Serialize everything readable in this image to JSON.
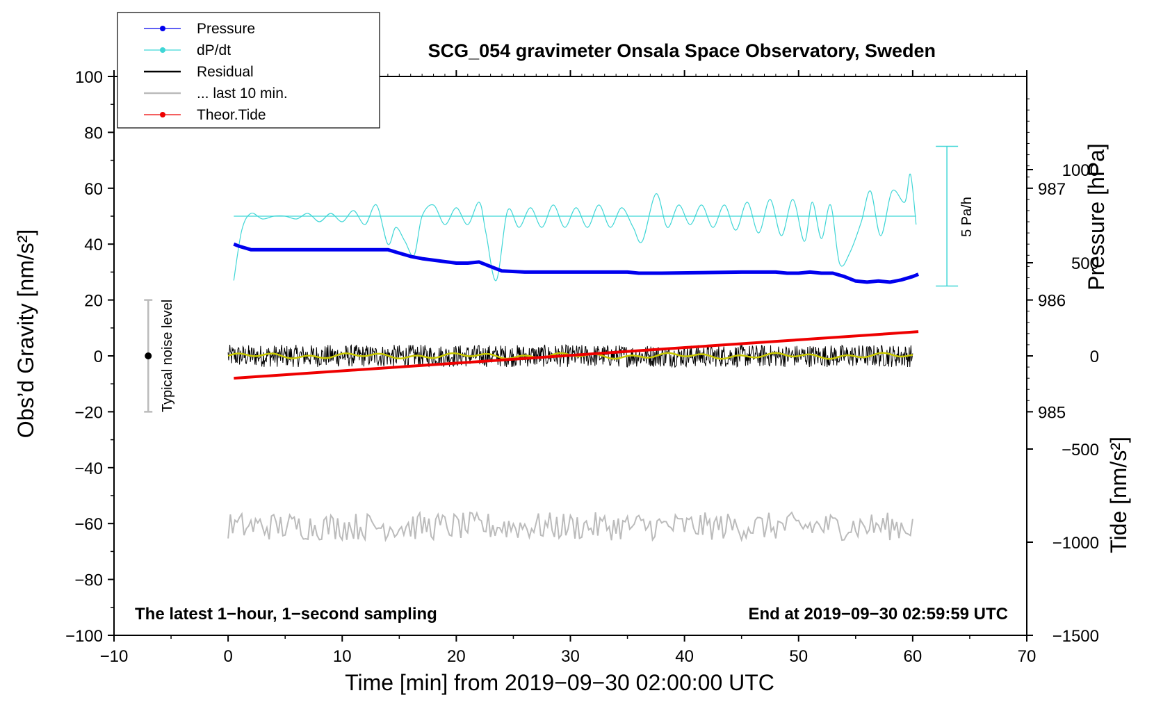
{
  "chart_data": {
    "type": "line",
    "title": "SCG_054 gravimeter Onsala Space Observatory, Sweden",
    "xlabel": "Time [min] from 2019−09−30 02:00:00 UTC",
    "ylabel_left": "Obs’d Gravity [nm/s²]",
    "ylabel_right_top": "Pressure [hPa]",
    "ylabel_right_bottom": "Tide [nm/s²]",
    "xlim": [
      -10,
      70
    ],
    "ylim": [
      -100,
      100
    ],
    "pressure_lim": [
      983,
      988
    ],
    "tide_lim": [
      -1500,
      1500
    ],
    "x_ticks": [
      -10,
      0,
      10,
      20,
      30,
      40,
      50,
      60,
      70
    ],
    "x_tick_labels": [
      "−10",
      "0",
      "10",
      "20",
      "30",
      "40",
      "50",
      "60",
      "70"
    ],
    "y_ticks": [
      -100,
      -80,
      -60,
      -40,
      -20,
      0,
      20,
      40,
      60,
      80,
      100
    ],
    "y_tick_labels": [
      "−100",
      "−80",
      "−60",
      "−40",
      "−20",
      "0",
      "20",
      "40",
      "60",
      "80",
      "100"
    ],
    "pressure_ticks": [
      985,
      986,
      987
    ],
    "pressure_tick_labels": [
      "985",
      "986",
      "987"
    ],
    "tide_ticks": [
      -1500,
      -1000,
      -500,
      0,
      500,
      1000
    ],
    "tide_tick_labels": [
      "−1500",
      "−1000",
      "−500",
      "0",
      "500",
      "1000"
    ],
    "annotations": {
      "bottom_left": "The latest 1−hour, 1−second sampling",
      "bottom_right": "End at 2019−09−30 02:59:59 UTC",
      "noise": "Typical noise level",
      "dpdt_scale": "5 Pa/h"
    },
    "noise_bar": {
      "x": -7,
      "y": 0,
      "low": -20,
      "high": 20
    },
    "dpdt_scale_bar": {
      "x": 63,
      "low": 25,
      "high": 75
    },
    "legend": [
      {
        "label": "Pressure",
        "color": "#0000ee",
        "style": "line-dot"
      },
      {
        "label": "dP/dt",
        "color": "#3fd6d6",
        "style": "line-dot"
      },
      {
        "label": "Residual",
        "color": "#000000",
        "style": "line"
      },
      {
        "label": "... last 10 min.",
        "color": "#bbbbbb",
        "style": "line"
      },
      {
        "label": "Theor.Tide",
        "color": "#ee0000",
        "style": "line-dot"
      }
    ],
    "series": [
      {
        "name": "Pressure",
        "axis": "pressure",
        "unit": "hPa",
        "color": "#0000ee",
        "x": [
          0.5,
          1,
          2,
          5,
          10,
          14,
          15,
          16,
          17,
          20,
          21,
          22,
          23,
          24,
          26,
          30,
          35,
          36,
          38,
          45,
          48,
          49,
          50,
          51,
          52,
          53,
          54,
          55,
          56,
          57,
          58,
          59,
          60,
          60.5
        ],
        "values": [
          986.5,
          986.48,
          986.45,
          986.45,
          986.45,
          986.45,
          986.42,
          986.39,
          986.37,
          986.33,
          986.33,
          986.34,
          986.3,
          986.26,
          986.25,
          986.25,
          986.25,
          986.24,
          986.24,
          986.25,
          986.25,
          986.24,
          986.24,
          986.25,
          986.24,
          986.24,
          986.21,
          986.17,
          986.16,
          986.17,
          986.16,
          986.18,
          986.21,
          986.23
        ]
      },
      {
        "name": "dP/dt",
        "axis": "left_gravity_frame",
        "color": "#3fd6d6",
        "baseline": 50,
        "x": [
          0.5,
          1.2,
          2,
          3,
          4,
          5,
          6,
          7,
          8,
          9,
          10,
          11,
          12,
          13,
          14,
          14.7,
          15.5,
          16.3,
          17,
          18,
          19,
          20,
          21,
          22,
          22.6,
          23.5,
          24.5,
          25.5,
          26.5,
          27.5,
          28.5,
          29.5,
          30.5,
          31.5,
          32.5,
          33.5,
          34.5,
          35.5,
          36.3,
          37.5,
          38.5,
          39.5,
          40.5,
          41.5,
          42.5,
          43.5,
          44.5,
          45.5,
          46.5,
          47.5,
          48.5,
          49.5,
          50.5,
          51.2,
          52,
          52.8,
          53.6,
          54.5,
          55.5,
          56.3,
          57.2,
          58.2,
          59.3,
          59.8,
          60.3
        ],
        "values": [
          27,
          45,
          51,
          49,
          50,
          50,
          49,
          51,
          48,
          51,
          48,
          52,
          47,
          54,
          40,
          46,
          41,
          36,
          50,
          54,
          47,
          53,
          47,
          55,
          44,
          27,
          52,
          46,
          53,
          46,
          54,
          46,
          53,
          46,
          54,
          46,
          53,
          46,
          41,
          58,
          46,
          54,
          47,
          54,
          46,
          54,
          45,
          55,
          44,
          56,
          43,
          56,
          41,
          55,
          42,
          54,
          33,
          37,
          48,
          59,
          43,
          59,
          55,
          65,
          47
        ]
      },
      {
        "name": "Residual",
        "axis": "gravity",
        "unit": "nm/s²",
        "color": "#000000",
        "x_start": 0,
        "x_end": 60,
        "mean": 0,
        "amplitude": 4,
        "smoothed_color": "#c8c800"
      },
      {
        "name": "... last 10 min.",
        "axis": "gravity",
        "color": "#bbbbbb",
        "x_start": 0,
        "x_end": 60,
        "mean": -61,
        "amplitude": 5
      },
      {
        "name": "Theor.Tide",
        "axis": "tide",
        "unit": "nm/s²",
        "color": "#ee0000",
        "x": [
          0.5,
          60.5
        ],
        "values": [
          -120,
          130
        ]
      }
    ]
  }
}
